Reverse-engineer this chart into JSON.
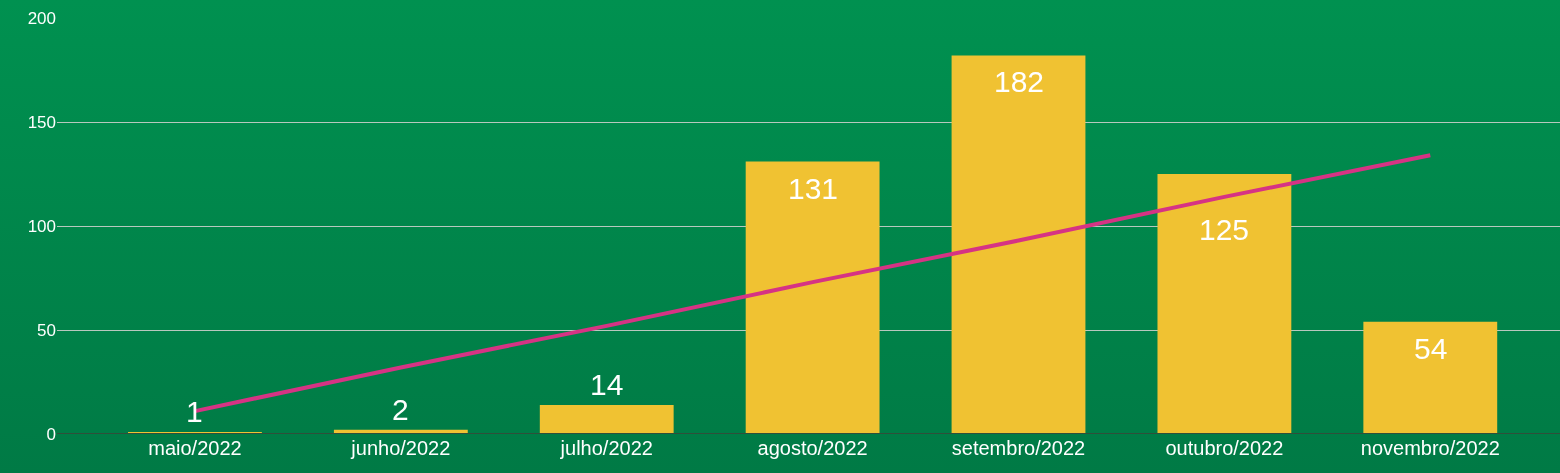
{
  "chart_data": {
    "type": "bar",
    "categories": [
      "maio/2022",
      "junho/2022",
      "julho/2022",
      "agosto/2022",
      "setembro/2022",
      "outubro/2022",
      "novembro/2022"
    ],
    "series": [
      {
        "color": "#f0c232",
        "values": [
          1,
          2,
          14,
          131,
          182,
          125,
          54
        ],
        "value_labels": [
          "1",
          "2",
          "14",
          "131",
          "182",
          "125",
          "54"
        ]
      },
      {
        "type": "line",
        "color": "#d63384",
        "values": [
          11,
          32,
          52,
          73,
          93,
          114,
          134
        ]
      }
    ],
    "ylim": [
      0,
      200
    ],
    "yticks": [
      0,
      50,
      100,
      150,
      200
    ],
    "grid": "y"
  }
}
